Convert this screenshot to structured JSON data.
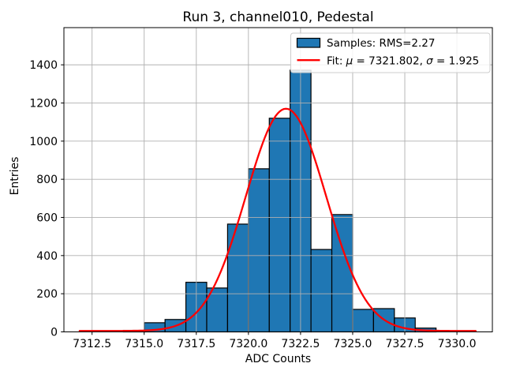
{
  "chart_data": {
    "type": "bar",
    "subtype": "histogram-with-gaussian-fit",
    "title": "Run 3, channel010, Pedestal",
    "xlabel": "ADC Counts",
    "ylabel": "Entries",
    "xlim": [
      7311.15,
      7331.7
    ],
    "ylim": [
      0,
      1595
    ],
    "grid": true,
    "xticks": {
      "values": [
        7312.5,
        7315.0,
        7317.5,
        7320.0,
        7322.5,
        7325.0,
        7327.5,
        7330.0
      ],
      "labels": [
        "7312.5",
        "7315.0",
        "7317.5",
        "7320.0",
        "7322.5",
        "7325.0",
        "7327.5",
        "7330.0"
      ]
    },
    "yticks": {
      "values": [
        0,
        200,
        400,
        600,
        800,
        1000,
        1200,
        1400
      ],
      "labels": [
        "0",
        "200",
        "400",
        "600",
        "800",
        "1000",
        "1200",
        "1400"
      ]
    },
    "histogram": {
      "bin_start": 7314,
      "bin_width": 1,
      "bin_edges": [
        7314,
        7315,
        7316,
        7317,
        7318,
        7319,
        7320,
        7321,
        7322,
        7323,
        7324,
        7325,
        7326,
        7327,
        7328,
        7329
      ],
      "counts": [
        8,
        48,
        65,
        260,
        230,
        565,
        855,
        1120,
        1372,
        432,
        615,
        118,
        122,
        73,
        20
      ],
      "fill_color": "#1f77b4",
      "edge_color": "#000000"
    },
    "fit": {
      "mu": 7321.802,
      "sigma": 1.925,
      "amplitude": 1165,
      "baseline": 5,
      "x_start": 7311.9,
      "x_end": 7330.9,
      "color": "#ff0000"
    },
    "legend": {
      "position": "upper-right",
      "entries": [
        {
          "swatch": "box",
          "label": "Samples: RMS=2.27"
        },
        {
          "swatch": "line",
          "label": "Fit: μ = 7321.802, σ = 1.925"
        }
      ]
    },
    "colors": {
      "grid": "#b0b0b0",
      "spine": "#000000",
      "legend_border": "#cccccc",
      "legend_bg": "#ffffff"
    }
  }
}
